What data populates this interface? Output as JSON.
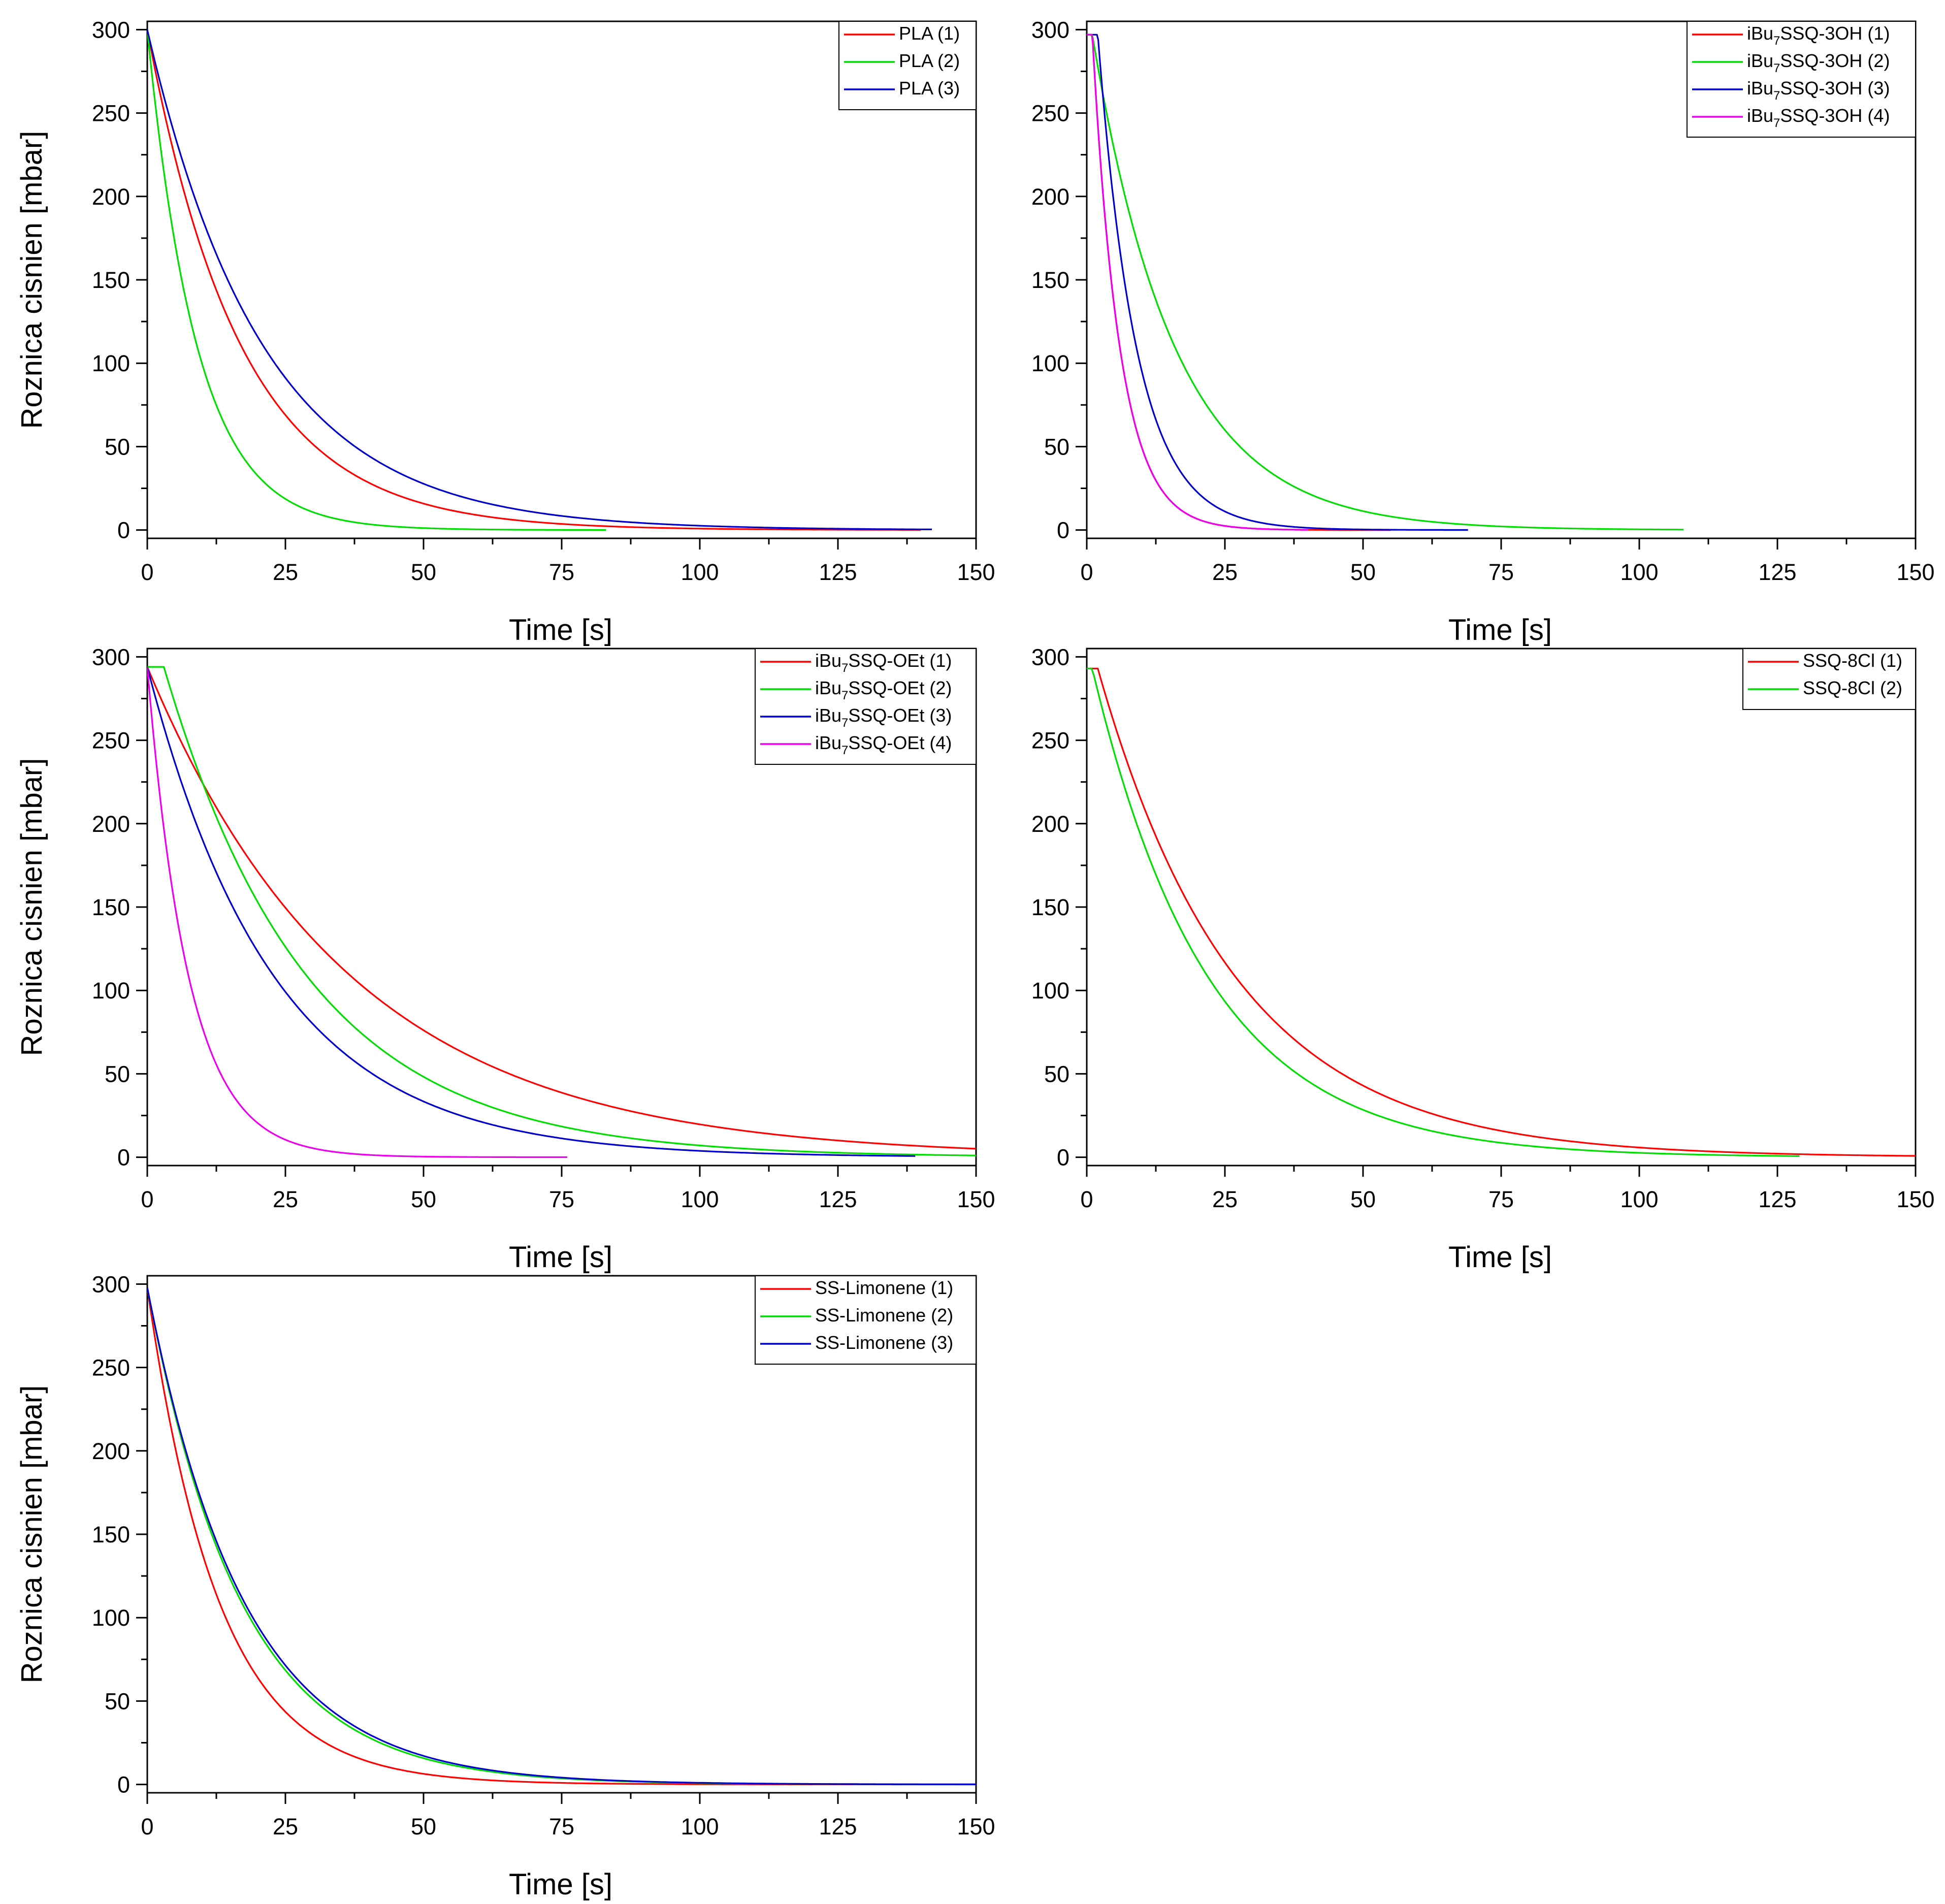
{
  "figure": {
    "description_axis_units": "Time [s] vs Roznica cisnien [mbar]"
  },
  "chart_data": [
    {
      "type": "line",
      "id": "pla",
      "xlabel": "Time [s]",
      "ylabel": "Roznica cisnien [mbar]",
      "xlim": [
        0,
        150
      ],
      "ylim": [
        -5,
        305
      ],
      "xticks": [
        0,
        25,
        50,
        75,
        100,
        125,
        150
      ],
      "yticks": [
        0,
        50,
        100,
        150,
        200,
        250,
        300
      ],
      "legend_position": "top-right",
      "series": [
        {
          "name": "PLA (1)",
          "legend": {
            "prefix": "PLA (1)",
            "sub": "",
            "suffix": ""
          },
          "color": "#ff0000",
          "start": 300,
          "end": 0,
          "tau": 17,
          "delay": 0,
          "tmax": 140
        },
        {
          "name": "PLA (2)",
          "legend": {
            "prefix": "PLA (2)",
            "sub": "",
            "suffix": ""
          },
          "color": "#00dd00",
          "start": 300,
          "end": 0,
          "tau": 9,
          "delay": 0,
          "tmax": 83
        },
        {
          "name": "PLA (3)",
          "legend": {
            "prefix": "PLA (3)",
            "sub": "",
            "suffix": ""
          },
          "color": "#0000cc",
          "start": 300,
          "end": 0,
          "tau": 21,
          "delay": 0,
          "tmax": 142
        }
      ]
    },
    {
      "type": "line",
      "id": "ibu7ssq-3oh",
      "xlabel": "Time [s]",
      "ylabel": "",
      "xlim": [
        0,
        150
      ],
      "ylim": [
        -5,
        305
      ],
      "xticks": [
        0,
        25,
        50,
        75,
        100,
        125,
        150
      ],
      "yticks": [
        0,
        50,
        100,
        150,
        200,
        250,
        300
      ],
      "legend_position": "top-right",
      "series": [
        {
          "name": "iBu7SSQ-3OH (1)",
          "legend": {
            "prefix": "iBu",
            "sub": "7",
            "suffix": "SSQ-3OH (1)"
          },
          "color": "#ff0000",
          "start": 297,
          "end": 0,
          "tau": 5,
          "delay": 1,
          "tmax": 55
        },
        {
          "name": "iBu7SSQ-3OH (2)",
          "legend": {
            "prefix": "iBu",
            "sub": "7",
            "suffix": "SSQ-3OH (2)"
          },
          "color": "#00dd00",
          "start": 297,
          "end": 0,
          "tau": 15,
          "delay": 1,
          "tmax": 108
        },
        {
          "name": "iBu7SSQ-3OH (3)",
          "legend": {
            "prefix": "iBu",
            "sub": "7",
            "suffix": "SSQ-3OH (3)"
          },
          "color": "#0000cc",
          "start": 297,
          "end": 0,
          "tau": 7,
          "delay": 2,
          "tmax": 69
        },
        {
          "name": "iBu7SSQ-3OH (4)",
          "legend": {
            "prefix": "iBu",
            "sub": "7",
            "suffix": "SSQ-3OH (4)"
          },
          "color": "#ee00ee",
          "start": 297,
          "end": 0,
          "tau": 5,
          "delay": 1,
          "tmax": 40
        }
      ]
    },
    {
      "type": "line",
      "id": "ibu7ssq-oet",
      "xlabel": "Time [s]",
      "ylabel": "Roznica cisnien [mbar]",
      "xlim": [
        0,
        150
      ],
      "ylim": [
        -5,
        305
      ],
      "xticks": [
        0,
        25,
        50,
        75,
        100,
        125,
        150
      ],
      "yticks": [
        0,
        50,
        100,
        150,
        200,
        250,
        300
      ],
      "legend_position": "top-right",
      "series": [
        {
          "name": "iBu7SSQ-OEt (1)",
          "legend": {
            "prefix": "iBu",
            "sub": "7",
            "suffix": "SSQ-OEt (1)"
          },
          "color": "#ff0000",
          "start": 294,
          "end": 0,
          "tau": 37,
          "delay": 0,
          "tmax": 150
        },
        {
          "name": "iBu7SSQ-OEt (2)",
          "legend": {
            "prefix": "iBu",
            "sub": "7",
            "suffix": "SSQ-OEt (2)"
          },
          "color": "#00dd00",
          "start": 294,
          "end": 0,
          "tau": 26,
          "delay": 3,
          "tmax": 150
        },
        {
          "name": "iBu7SSQ-OEt (3)",
          "legend": {
            "prefix": "iBu",
            "sub": "7",
            "suffix": "SSQ-OEt (3)"
          },
          "color": "#0000cc",
          "start": 294,
          "end": 0,
          "tau": 23,
          "delay": 0,
          "tmax": 139
        },
        {
          "name": "iBu7SSQ-OEt (4)",
          "legend": {
            "prefix": "iBu",
            "sub": "7",
            "suffix": "SSQ-OEt (4)"
          },
          "color": "#ee00ee",
          "start": 294,
          "end": 0,
          "tau": 7.5,
          "delay": 0,
          "tmax": 76
        }
      ]
    },
    {
      "type": "line",
      "id": "ssq-8cl",
      "xlabel": "Time [s]",
      "ylabel": "",
      "xlim": [
        0,
        150
      ],
      "ylim": [
        -5,
        305
      ],
      "xticks": [
        0,
        25,
        50,
        75,
        100,
        125,
        150
      ],
      "yticks": [
        0,
        50,
        100,
        150,
        200,
        250,
        300
      ],
      "legend_position": "top-right",
      "series": [
        {
          "name": "SSQ-8Cl (1)",
          "legend": {
            "prefix": "SSQ-8Cl (1)",
            "sub": "",
            "suffix": ""
          },
          "color": "#ff0000",
          "start": 293,
          "end": 0,
          "tau": 25,
          "delay": 2,
          "tmax": 150
        },
        {
          "name": "SSQ-8Cl (2)",
          "legend": {
            "prefix": "SSQ-8Cl (2)",
            "sub": "",
            "suffix": ""
          },
          "color": "#00dd00",
          "start": 293,
          "end": 0,
          "tau": 21,
          "delay": 1,
          "tmax": 129
        }
      ]
    },
    {
      "type": "line",
      "id": "ss-limonene",
      "xlabel": "Time [s]",
      "ylabel": "Roznica cisnien [mbar]",
      "xlim": [
        0,
        150
      ],
      "ylim": [
        -5,
        305
      ],
      "xticks": [
        0,
        25,
        50,
        75,
        100,
        125,
        150
      ],
      "yticks": [
        0,
        50,
        100,
        150,
        200,
        250,
        300
      ],
      "legend_position": "top-right",
      "series": [
        {
          "name": "SS-Limonene (1)",
          "legend": {
            "prefix": "SS-Limonene (1)",
            "sub": "",
            "suffix": ""
          },
          "color": "#ff0000",
          "start": 298,
          "end": 0,
          "tau": 13,
          "delay": 0,
          "tmax": 150
        },
        {
          "name": "SS-Limonene (2)",
          "legend": {
            "prefix": "SS-Limonene (2)",
            "sub": "",
            "suffix": ""
          },
          "color": "#00dd00",
          "start": 298,
          "end": 0,
          "tau": 17,
          "delay": 0,
          "tmax": 150
        },
        {
          "name": "SS-Limonene (3)",
          "legend": {
            "prefix": "SS-Limonene (3)",
            "sub": "",
            "suffix": ""
          },
          "color": "#0000cc",
          "start": 298,
          "end": 0,
          "tau": 17.5,
          "delay": 0,
          "tmax": 150
        }
      ]
    }
  ]
}
